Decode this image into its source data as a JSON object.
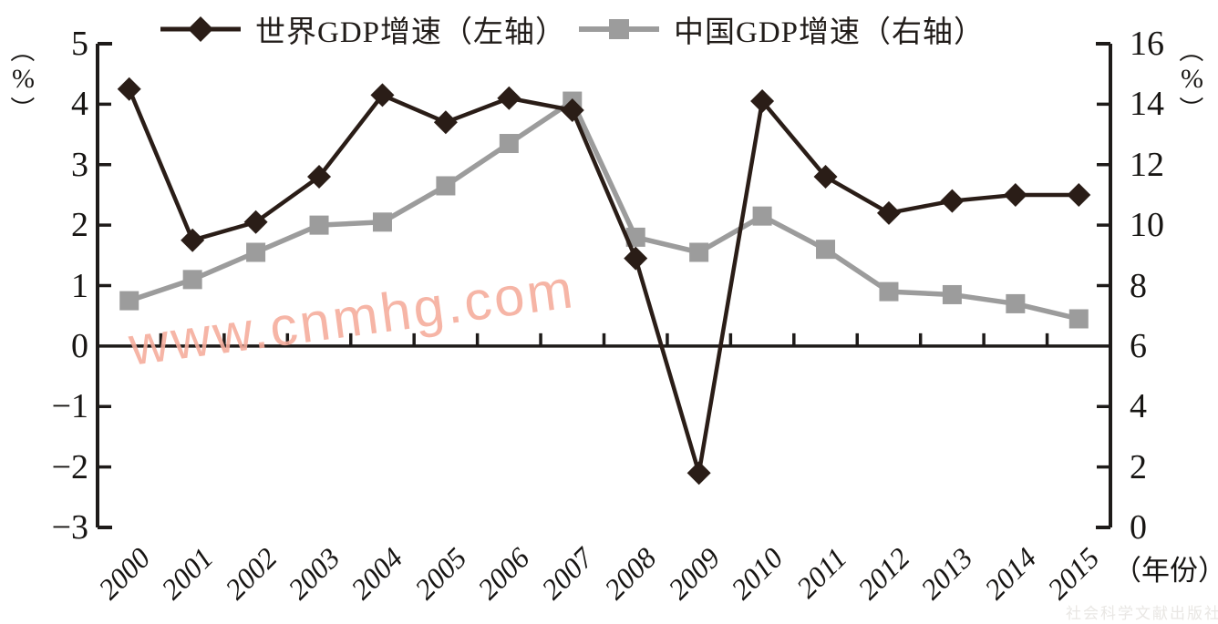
{
  "chart_data": {
    "type": "line",
    "categories": [
      "2000",
      "2001",
      "2002",
      "2003",
      "2004",
      "2005",
      "2006",
      "2007",
      "2008",
      "2009",
      "2010",
      "2011",
      "2012",
      "2013",
      "2014",
      "2015"
    ],
    "series": [
      {
        "name": "世界GDP增速（左轴）",
        "axis": "left",
        "marker": "diamond",
        "color": "#2a1d17",
        "values": [
          4.25,
          1.75,
          2.05,
          2.8,
          4.15,
          3.7,
          4.1,
          3.9,
          1.45,
          -2.1,
          4.05,
          2.8,
          2.2,
          2.4,
          2.5,
          2.5
        ]
      },
      {
        "name": "中国GDP增速（右轴）",
        "axis": "right",
        "marker": "square",
        "color": "#9c9c9c",
        "values": [
          7.5,
          8.2,
          9.1,
          10.0,
          10.1,
          11.3,
          12.7,
          14.1,
          9.6,
          9.1,
          10.3,
          9.2,
          7.8,
          7.7,
          7.4,
          6.9
        ]
      }
    ],
    "left_axis": {
      "unit_label": "（%）",
      "min": -3,
      "max": 5,
      "ticks": [
        5,
        4,
        3,
        2,
        1,
        0,
        -1,
        -2,
        -3
      ]
    },
    "right_axis": {
      "unit_label": "（%）",
      "min": 0,
      "max": 16,
      "ticks": [
        16,
        14,
        12,
        10,
        8,
        6,
        4,
        2,
        0
      ]
    },
    "x_axis": {
      "unit_label": "（年份）"
    },
    "grid": false,
    "legend_position": "top",
    "axis_color": "#1e1b19",
    "zero_line_left_value": 0
  },
  "watermark": {
    "text": "www.cnmhg.com",
    "color": "#f6ad9d"
  },
  "publisher_watermark": {
    "text": "社会科学文献出版社",
    "color": "#e9e7e4"
  }
}
